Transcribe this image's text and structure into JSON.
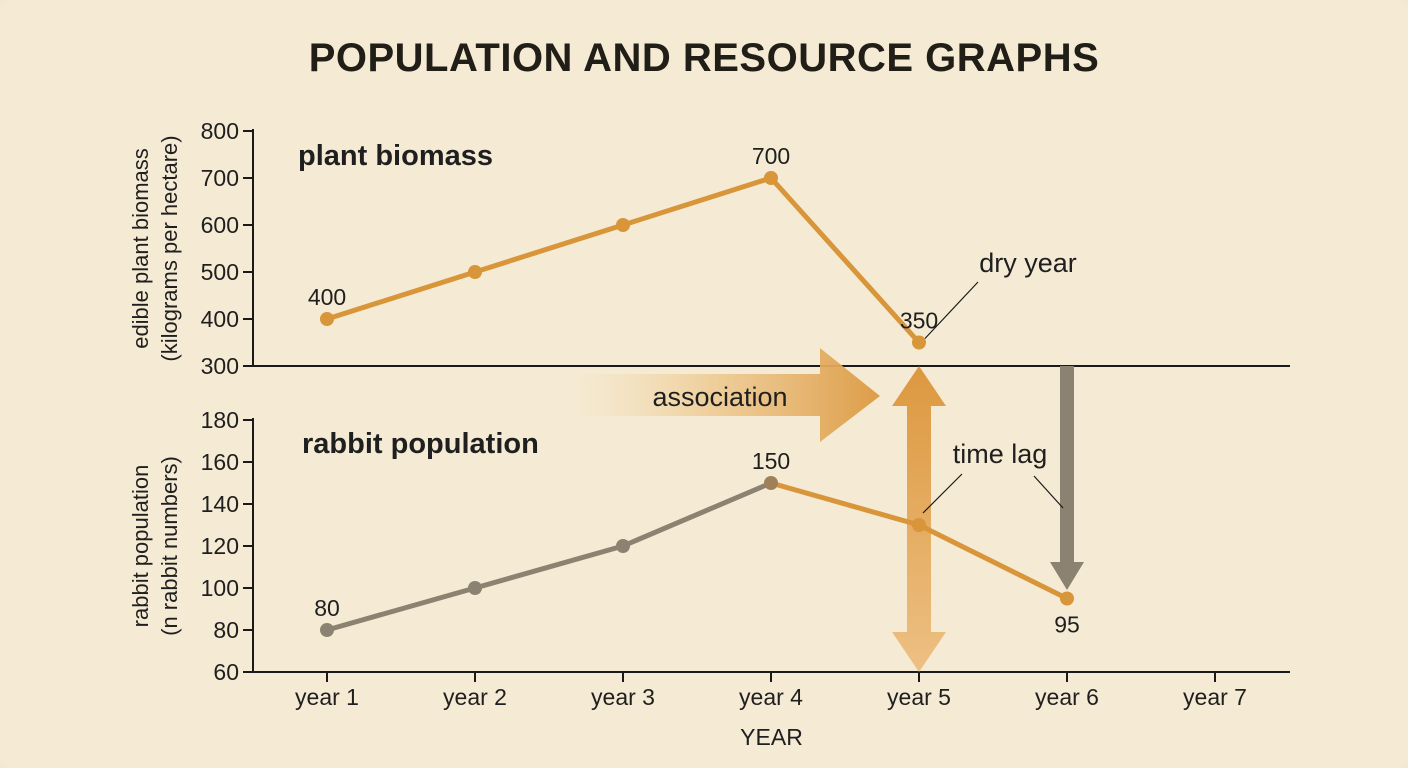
{
  "title": "POPULATION AND RESOURCE GRAPHS",
  "colors": {
    "background": "#f5ebd4",
    "plant_series": "#d8953a",
    "rabbit_series_early": "#8c8271",
    "rabbit_series_late": "#d8953a",
    "axis": "#1a1a1a",
    "text": "#1f1f1f"
  },
  "chart_data": [
    {
      "type": "line",
      "panel": "top",
      "title": "plant biomass",
      "ylabel": [
        "edible plant biomass",
        "(kilograms per hectare)"
      ],
      "ylim": [
        300,
        800
      ],
      "yticks": [
        300,
        400,
        500,
        600,
        700,
        800
      ],
      "x": [
        "year 1",
        "year 2",
        "year 3",
        "year 4",
        "year 5"
      ],
      "values": [
        400,
        500,
        600,
        700,
        350
      ],
      "data_labels": [
        {
          "x": "year 1",
          "text": "400"
        },
        {
          "x": "year 4",
          "text": "700"
        },
        {
          "x": "year 5",
          "text": "350"
        }
      ],
      "annotations": [
        {
          "text": "dry year",
          "target_x": "year 5",
          "target_y": 350
        }
      ]
    },
    {
      "type": "line",
      "panel": "bottom",
      "title": "rabbit population",
      "ylabel": [
        "rabbit population",
        "(n rabbit numbers)"
      ],
      "xlabel": "YEAR",
      "ylim": [
        60,
        180
      ],
      "yticks": [
        60,
        80,
        100,
        120,
        140,
        160,
        180
      ],
      "categories": [
        "year 1",
        "year 2",
        "year 3",
        "year 4",
        "year 5",
        "year 6",
        "year 7"
      ],
      "x": [
        "year 1",
        "year 2",
        "year 3",
        "year 4",
        "year 5",
        "year 6"
      ],
      "values": [
        80,
        100,
        120,
        150,
        130,
        95
      ],
      "data_labels": [
        {
          "x": "year 1",
          "text": "80"
        },
        {
          "x": "year 4",
          "text": "150"
        },
        {
          "x": "year 6",
          "text": "95"
        }
      ],
      "annotations": [
        {
          "text": "time lag",
          "target_x": "year 5",
          "target_y": 130
        }
      ]
    }
  ],
  "overlay_arrows": {
    "association_label": "association",
    "time_lag_label": "time lag"
  }
}
